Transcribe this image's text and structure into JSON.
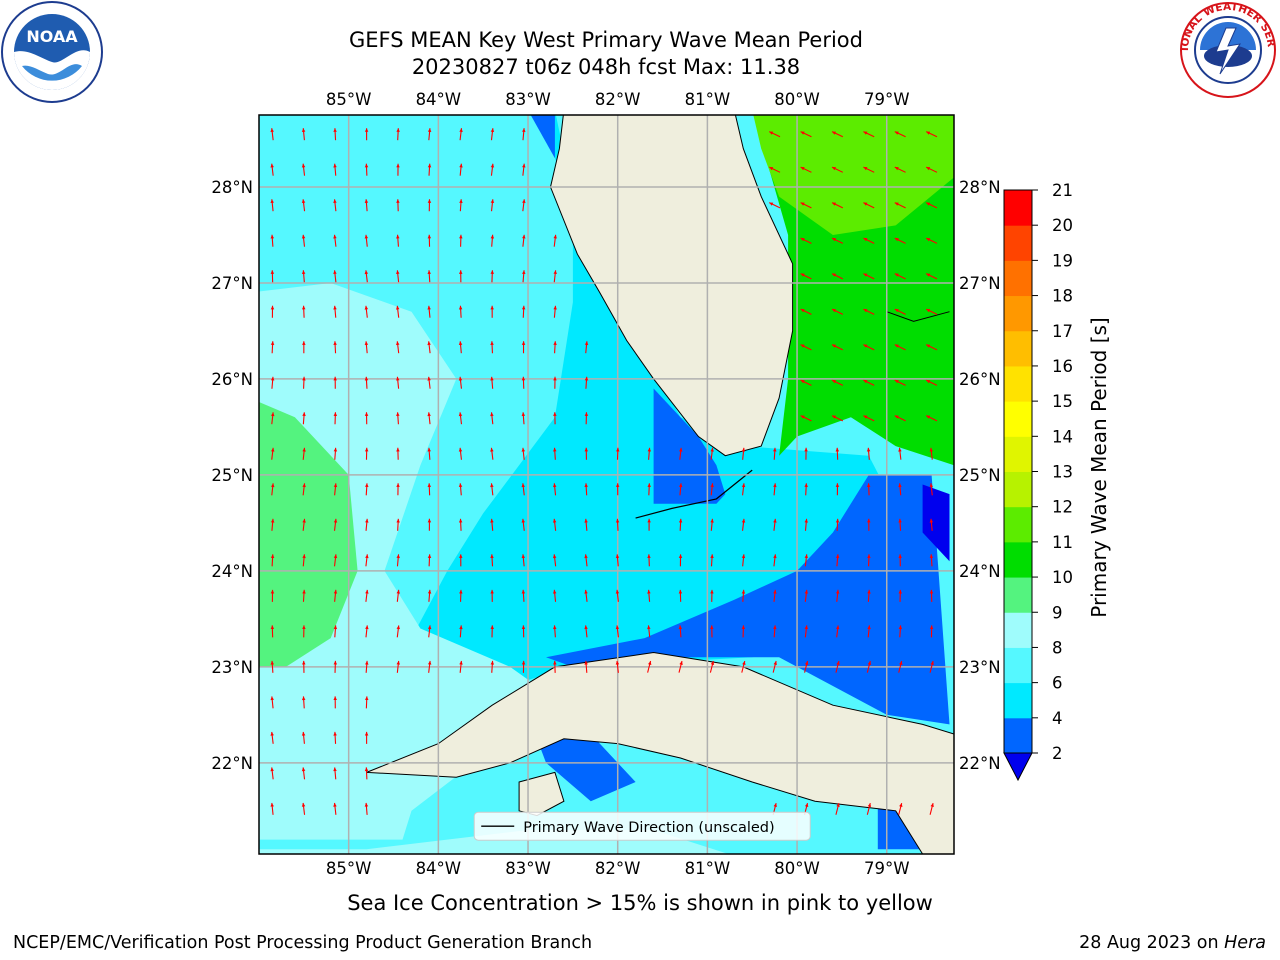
{
  "title_line1": "GEFS MEAN Key West Primary Wave Mean Period",
  "title_line2": "20230827 t06z 048h fcst   Max: 11.38",
  "subtitle": "Sea Ice Concentration > 15% is shown in pink to yellow",
  "footer_left": "NCEP/EMC/Verification Post Processing Product Generation Branch",
  "footer_right_prefix": "28 Aug 2023 on ",
  "footer_right_host": "Hera",
  "logos": {
    "left": "noaa-logo",
    "right": "nws-logo"
  },
  "logo_text": {
    "noaa": "NOAA",
    "nws": "NATIONAL WEATHER SERVICE"
  },
  "map": {
    "lon_range": [
      -86.0,
      -78.25
    ],
    "lat_range": [
      21.05,
      28.75
    ],
    "lon_ticks": [
      "85°W",
      "84°W",
      "83°W",
      "82°W",
      "81°W",
      "80°W",
      "79°W"
    ],
    "lat_ticks": [
      "28°N",
      "27°N",
      "26°N",
      "25°N",
      "24°N",
      "23°N",
      "22°N"
    ],
    "grid": true,
    "land_color": "#efeedd",
    "arrow_color": "#ff0000",
    "legend_label": "Primary Wave Direction (unscaled)",
    "legend_placement": "bottom-center"
  },
  "colorbar": {
    "title": "Primary Wave Mean Period [s]",
    "levels": [
      2,
      4,
      6,
      8,
      9,
      10,
      11,
      12,
      13,
      14,
      15,
      16,
      17,
      18,
      19,
      20,
      21
    ],
    "colors": [
      "#0066ff",
      "#00e9ff",
      "#55f8ff",
      "#9ffcfc",
      "#54f37f",
      "#00dd00",
      "#5cec00",
      "#b7f200",
      "#e0f500",
      "#ffff00",
      "#ffe200",
      "#ffbe00",
      "#ff9800",
      "#ff7100",
      "#ff4400",
      "#ff0000"
    ],
    "under_color": "#0000ee",
    "labels": [
      "21",
      "20",
      "19",
      "18",
      "17",
      "16",
      "15",
      "14",
      "13",
      "12",
      "11",
      "10",
      "9",
      "8",
      "6",
      "4",
      "2"
    ]
  }
}
